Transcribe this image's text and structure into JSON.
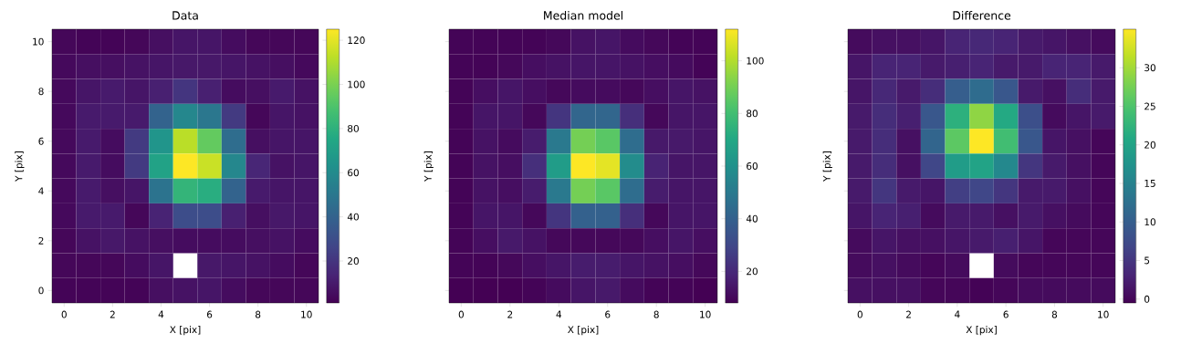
{
  "chart_data": [
    {
      "type": "heatmap",
      "title": "Data",
      "xlabel": "X [pix]",
      "ylabel": "Y [pix]",
      "categories": [
        "0",
        null,
        "2",
        null,
        "4",
        null,
        "6",
        null,
        "8",
        null,
        "10"
      ],
      "y_categories": [
        "10",
        null,
        "8",
        null,
        "6",
        null,
        "4",
        null,
        "2",
        null,
        "0"
      ],
      "cells": [
        [
          3,
          2,
          2,
          3,
          6,
          8,
          8,
          5,
          3,
          3,
          3
        ],
        [
          4,
          6,
          6,
          7,
          8,
          9,
          9,
          8,
          7,
          6,
          4
        ],
        [
          4,
          8,
          10,
          8,
          12,
          20,
          12,
          5,
          6,
          10,
          7
        ],
        [
          4,
          10,
          10,
          10,
          40,
          58,
          50,
          22,
          3,
          8,
          7
        ],
        [
          4,
          10,
          5,
          22,
          65,
          112,
          95,
          45,
          6,
          8,
          8
        ],
        [
          4,
          10,
          5,
          22,
          72,
          125,
          115,
          58,
          14,
          7,
          8
        ],
        [
          4,
          10,
          6,
          8,
          48,
          82,
          78,
          40,
          10,
          8,
          8
        ],
        [
          4,
          10,
          10,
          3,
          13,
          30,
          30,
          12,
          6,
          9,
          8
        ],
        [
          3,
          7,
          9,
          7,
          6,
          5,
          5,
          5,
          6,
          7,
          5
        ],
        [
          3,
          3,
          3,
          5,
          8,
          null,
          9,
          8,
          7,
          5,
          3
        ],
        [
          2,
          2,
          2,
          2,
          6,
          7,
          8,
          5,
          3,
          3,
          3
        ]
      ],
      "clim": [
        1,
        125
      ],
      "cticks": [
        20,
        40,
        60,
        80,
        100,
        120
      ]
    },
    {
      "type": "heatmap",
      "title": "Median model",
      "xlabel": "X [pix]",
      "ylabel": "Y [pix]",
      "categories": [
        "0",
        null,
        "2",
        null,
        "4",
        null,
        "6",
        null,
        "8",
        null,
        "10"
      ],
      "y_categories": [
        "10",
        null,
        "8",
        null,
        "6",
        null,
        "4",
        null,
        "2",
        null,
        "0"
      ],
      "cells": [
        [
          9,
          9,
          9,
          9,
          10,
          13,
          14,
          11,
          10,
          9,
          9
        ],
        [
          9,
          9,
          10,
          12,
          13,
          14,
          14,
          13,
          12,
          11,
          9
        ],
        [
          9,
          12,
          14,
          12,
          10,
          11,
          11,
          10,
          12,
          14,
          13
        ],
        [
          9,
          14,
          14,
          10,
          24,
          42,
          42,
          22,
          10,
          14,
          14
        ],
        [
          9,
          13,
          11,
          16,
          50,
          90,
          85,
          45,
          15,
          15,
          14
        ],
        [
          9,
          13,
          12,
          22,
          65,
          112,
          108,
          58,
          18,
          14,
          14
        ],
        [
          9,
          13,
          12,
          16,
          50,
          90,
          85,
          45,
          16,
          14,
          14
        ],
        [
          9,
          14,
          14,
          10,
          24,
          40,
          40,
          22,
          10,
          14,
          14
        ],
        [
          9,
          12,
          15,
          13,
          10,
          10,
          10,
          10,
          12,
          14,
          12
        ],
        [
          9,
          9,
          10,
          12,
          14,
          16,
          16,
          14,
          13,
          12,
          10
        ],
        [
          8,
          8,
          8,
          9,
          11,
          14,
          15,
          11,
          9,
          9,
          8
        ]
      ],
      "clim": [
        8,
        112
      ],
      "cticks": [
        20,
        40,
        60,
        80,
        100
      ],
      "tick_labels": "x"
    },
    {
      "type": "heatmap",
      "title": "Difference",
      "xlabel": "X [pix]",
      "ylabel": "Y [pix]",
      "categories": [
        "0",
        null,
        "2",
        null,
        "4",
        null,
        "6",
        null,
        "8",
        null,
        "10"
      ],
      "y_categories": [
        "10",
        null,
        "8",
        null,
        "6",
        null,
        "4",
        null,
        "2",
        null,
        "0"
      ],
      "cells": [
        [
          0.5,
          1,
          1,
          1.5,
          3,
          3.5,
          3,
          2,
          1.5,
          1,
          0.5
        ],
        [
          1.5,
          3,
          3,
          2,
          2.5,
          3,
          2,
          2,
          3,
          3,
          2
        ],
        [
          1.5,
          3.5,
          2,
          4,
          10,
          12,
          9,
          2,
          1,
          4,
          2
        ],
        [
          2,
          4,
          2.5,
          9,
          22,
          29,
          21,
          8,
          0.5,
          1.5,
          2
        ],
        [
          2,
          4,
          1,
          11,
          26,
          35,
          24,
          9,
          1.5,
          1,
          0
        ],
        [
          2,
          4,
          1,
          7,
          19,
          20,
          16,
          5,
          2,
          1,
          0
        ],
        [
          2,
          5,
          2,
          1.5,
          6,
          7,
          5,
          2,
          2,
          1,
          0
        ],
        [
          1.5,
          3,
          2.5,
          0.5,
          2,
          2,
          1,
          2,
          1,
          0.5,
          0
        ],
        [
          0.5,
          1.5,
          1,
          1,
          1.5,
          2,
          2.5,
          1.5,
          0,
          0,
          0
        ],
        [
          0.5,
          1,
          0.5,
          0,
          0.5,
          null,
          0.5,
          0,
          0,
          0,
          0
        ],
        [
          1,
          1,
          1,
          0,
          0,
          -0.3,
          0,
          0.5,
          0.5,
          0.5,
          0.5
        ]
      ],
      "clim": [
        -0.5,
        35
      ],
      "cticks": [
        0,
        5,
        10,
        15,
        20,
        25,
        30
      ],
      "tick_labels": "x"
    }
  ]
}
